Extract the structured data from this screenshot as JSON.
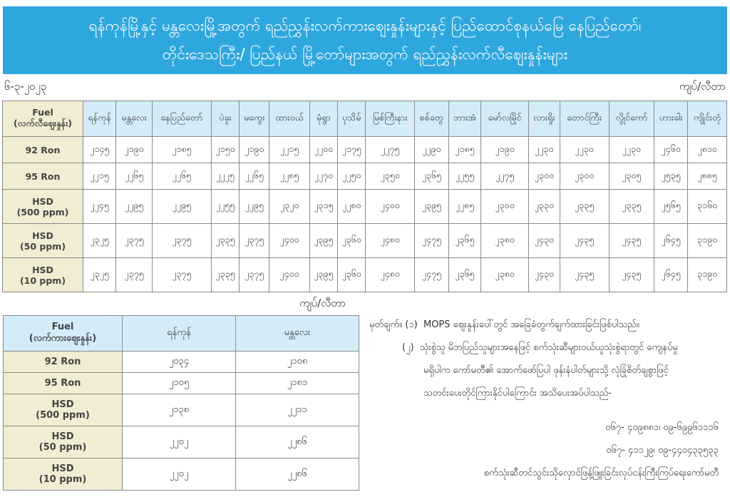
{
  "header": {
    "title_line1": "ရန်ကုန်မြို့နှင့် မန္တလေးမြို့အတွက် ရည်ညွှန်းလက်ကားဈေးနှုန်းများနှင့် ပြည်ထောင်စုနယ်မြေ နေပြည်တော်၊",
    "title_line2": "တိုင်းဒေသကြီး/ ပြည်နယ် မြို့တော်များအတွက် ရည်ညွှန်းလက်လီဈေးနှုန်းများ"
  },
  "date": "၆-၃-၂၀၂၃",
  "unit": "ကျပ်/လီတာ",
  "retail": {
    "fuel_header": "Fuel",
    "fuel_sub": "(လက်လီဈေးနှုန်း)",
    "cities": [
      "ရန်ကုန်",
      "မန္တလေး",
      "နေပြည်တော်",
      "ပဲခူး",
      "မကွေး",
      "ထားဝယ်",
      "မုံရွာ",
      "ပုသိမ်",
      "မြစ်ကြီးနား",
      "စစ်တွေ",
      "ဘားအံ",
      "မော်လမြိုင်",
      "လားရှိုး",
      "တောင်ကြီး",
      "လွိုင်ကော်",
      "ဟားခါး",
      "ကျိုင်းတုံ"
    ],
    "rows": [
      {
        "l1": "92 Ron",
        "l2": "",
        "values": [
          "၂၁၄၅",
          "၂၁၉၀",
          "၂၁၈၅",
          "၂၁၅၀",
          "၂၁၉၀",
          "၂၂၁၅",
          "၂၂၀၀",
          "၂၁၇၅",
          "၂၂၇၅",
          "၂၂၉၀",
          "၂၁၈၅",
          "၂၁၉၀",
          "၂၂၃၀",
          "၂၂၃၀",
          "၂၂၃၀",
          "၂၄၆၀",
          "၂၈၁၀"
        ]
      },
      {
        "l1": "95 Ron",
        "l2": "",
        "values": [
          "၂၂၁၅",
          "၂၂၆၅",
          "၂၂၆၅",
          "၂၂၂၅",
          "၂၂၆၅",
          "၂၂၈၅",
          "၂၂၇၀",
          "၂၂၅၀",
          "၂၃၅၀",
          "၂၃၆၅",
          "၂၂၅၅",
          "၂၂၇၅",
          "၂၃၀၀",
          "၂၃၀၀",
          "၂၃၀၅",
          "၂၅၃၅",
          "၂၈၈၅"
        ]
      },
      {
        "l1": "HSD",
        "l2": "(500 ppm)",
        "values": [
          "၂၂၄၅",
          "၂၂၉၅",
          "၂၂၉၅",
          "၂၂၅၅",
          "၂၂၉၅",
          "၂၃၂၀",
          "၂၃၁၅",
          "၂၂၈၀",
          "၂၄၀၀",
          "၂၃၉၅",
          "၂၂၈၅",
          "၂၃၀၀",
          "၂၃၃၀",
          "၂၃၃၅",
          "၂၃၃၅",
          "၂၅၆၅",
          "၃၁၆၀"
        ]
      },
      {
        "l1": "HSD",
        "l2": "(50 ppm)",
        "values": [
          "၂၃၂၅",
          "၂၃၇၅",
          "၂၃၇၅",
          "၂၃၃၅",
          "၂၃၇၅",
          "၂၄၀၀",
          "၂၃၉၅",
          "၂၃၆၀",
          "၂၄၈၀",
          "၂၄၇၅",
          "၂၃၆၅",
          "၂၃၈၀",
          "၂၄၃၀",
          "၂၄၃၅",
          "၂၄၃၅",
          "၂၆၄၅",
          "၃၁၉၀"
        ]
      },
      {
        "l1": "HSD",
        "l2": "(10 ppm)",
        "values": [
          "၂၃၂၅",
          "၂၃၇၅",
          "၂၃၇၅",
          "၂၃၃၅",
          "၂၃၇၅",
          "၂၄၀၀",
          "၂၃၉၅",
          "၂၃၆၀",
          "၂၄၈၀",
          "၂၄၇၅",
          "၂၃၆၅",
          "၂၃၈၀",
          "၂၄၃၀",
          "၂၄၃၅",
          "၂၄၃၅",
          "၂၆၄၅",
          "၃၁၉၀"
        ]
      }
    ]
  },
  "wholesale": {
    "fuel_header": "Fuel",
    "fuel_sub": "(လက်ကားဈေးနှုန်း)",
    "cities": [
      "ရန်ကုန်",
      "မန္တလေး"
    ],
    "rows": [
      {
        "l1": "92 Ron",
        "l2": "",
        "values": [
          "၂၀၃၄",
          "၂၁၀၈"
        ]
      },
      {
        "l1": "95 Ron",
        "l2": "",
        "values": [
          "၂၁၀၅",
          "၂၁၈၁"
        ]
      },
      {
        "l1": "HSD",
        "l2": "(500 ppm)",
        "values": [
          "၂၁၃၈",
          "၂၂၁၁"
        ]
      },
      {
        "l1": "HSD",
        "l2": "(50 ppm)",
        "values": [
          "၂၂၀၂",
          "၂၂၈၆"
        ]
      },
      {
        "l1": "HSD",
        "l2": "(10 ppm)",
        "values": [
          "၂၂၀၂",
          "၂၂၈၆"
        ]
      }
    ]
  },
  "notes": {
    "label": "မှတ်ချက်။",
    "n1_num": "(၁)",
    "n1": "MOPS ဈေးနှုန်းပေါ်တွင် အခြေခံတွက်ချက်ထားခြင်းဖြစ်ပါသည်။",
    "n2_num": "(၂)",
    "n2_l1": "သုံးစွဲသူ မိဘပြည်သူများအနေဖြင့် စက်သုံးဆီများဝယ်ယူသုံးစွဲရာတွင် ကျေနပ်မှု",
    "n2_l2": "မရှိပါက  ကော်မတီ၏ အောက်ဖော်ပြပါ ဖုန်းနံပါတ်များသို့ လုံခြုံစိတ်ချစွာဖြင့်",
    "n2_l3": "သတင်းပေးတိုင်ကြားနိုင်ပါကြောင်း အသိပေးအပ်ပါသည်-",
    "phone1": "၀၆၇- ၄၀၉၈၈၁၊ ၀၉-၆၉၉၆၁၁၁၆",
    "phone2": "၀၆၇- ၄၁၁၂၉၊ ၀၉-၄၄၀၄၃၃၅၃၃",
    "committee": "စက်သုံးဆီတင်သွင်းသိုလှောင်ဖြန့်ဖြူးခြင်းလုပ်ငန်းကြီးကြပ်ရေးကော်မတီ"
  },
  "colors": {
    "banner": "#2ea7de",
    "header_cell": "#d3ecf8",
    "label_cell": "#f2ecd3"
  }
}
